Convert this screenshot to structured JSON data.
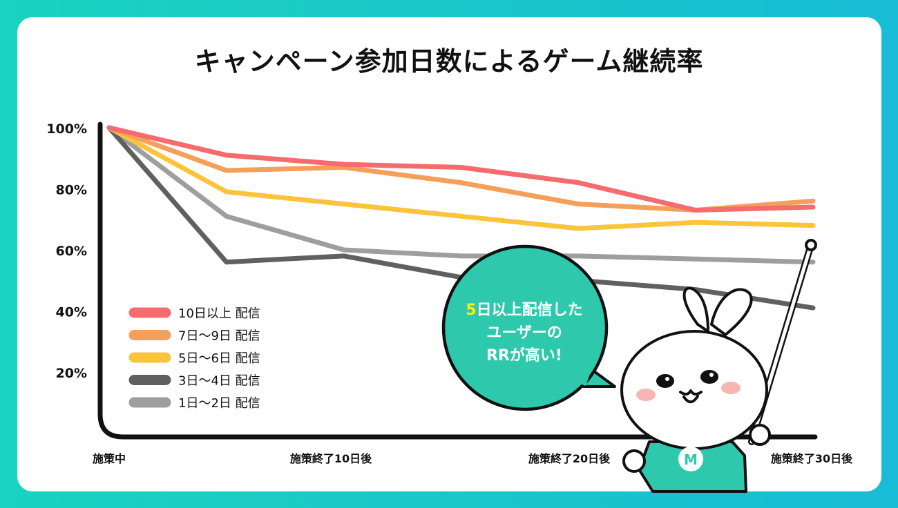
{
  "chart_data": {
    "type": "line",
    "title": "キャンペーン参加日数によるゲーム継続率",
    "xlabel": "",
    "ylabel": "",
    "ylim": [
      0,
      100
    ],
    "yticks": [
      "100%",
      "80%",
      "60%",
      "40%",
      "20%"
    ],
    "ytick_values": [
      100,
      80,
      60,
      40,
      20
    ],
    "xtick_labels": [
      "施策中",
      "施策終了10日後",
      "施策終了20日後",
      "施策終了30日後"
    ],
    "x": [
      0,
      5,
      10,
      15,
      20,
      25,
      30
    ],
    "grid": false,
    "legend_position": "bottom-left",
    "series": [
      {
        "name": "10日以上 配信",
        "color": "#f56b6e",
        "values": [
          100,
          91,
          88,
          87,
          82,
          73,
          74
        ]
      },
      {
        "name": "7日〜9日 配信",
        "color": "#f5a05a",
        "values": [
          100,
          86,
          87,
          82,
          75,
          73,
          76
        ]
      },
      {
        "name": "5日〜6日 配信",
        "color": "#fbc43b",
        "values": [
          100,
          79,
          75,
          71,
          67,
          69,
          68
        ]
      },
      {
        "name": "3日〜4日 配信",
        "color": "#606060",
        "values": [
          100,
          56,
          58,
          51,
          50,
          47,
          41
        ]
      },
      {
        "name": "1日〜2日 配信",
        "color": "#9e9e9e",
        "values": [
          100,
          71,
          60,
          58,
          58,
          57,
          56
        ]
      }
    ]
  },
  "annotation": {
    "highlight": "5",
    "line1_rest": "日以上配信した",
    "line2": "ユーザーの",
    "line3": "RRが高い!"
  },
  "mascot": {
    "shirt_letter": "M"
  },
  "colors": {
    "accent": "#2ec9ad",
    "background_left": "#1ad3c0",
    "background_right": "#18bcd6"
  }
}
